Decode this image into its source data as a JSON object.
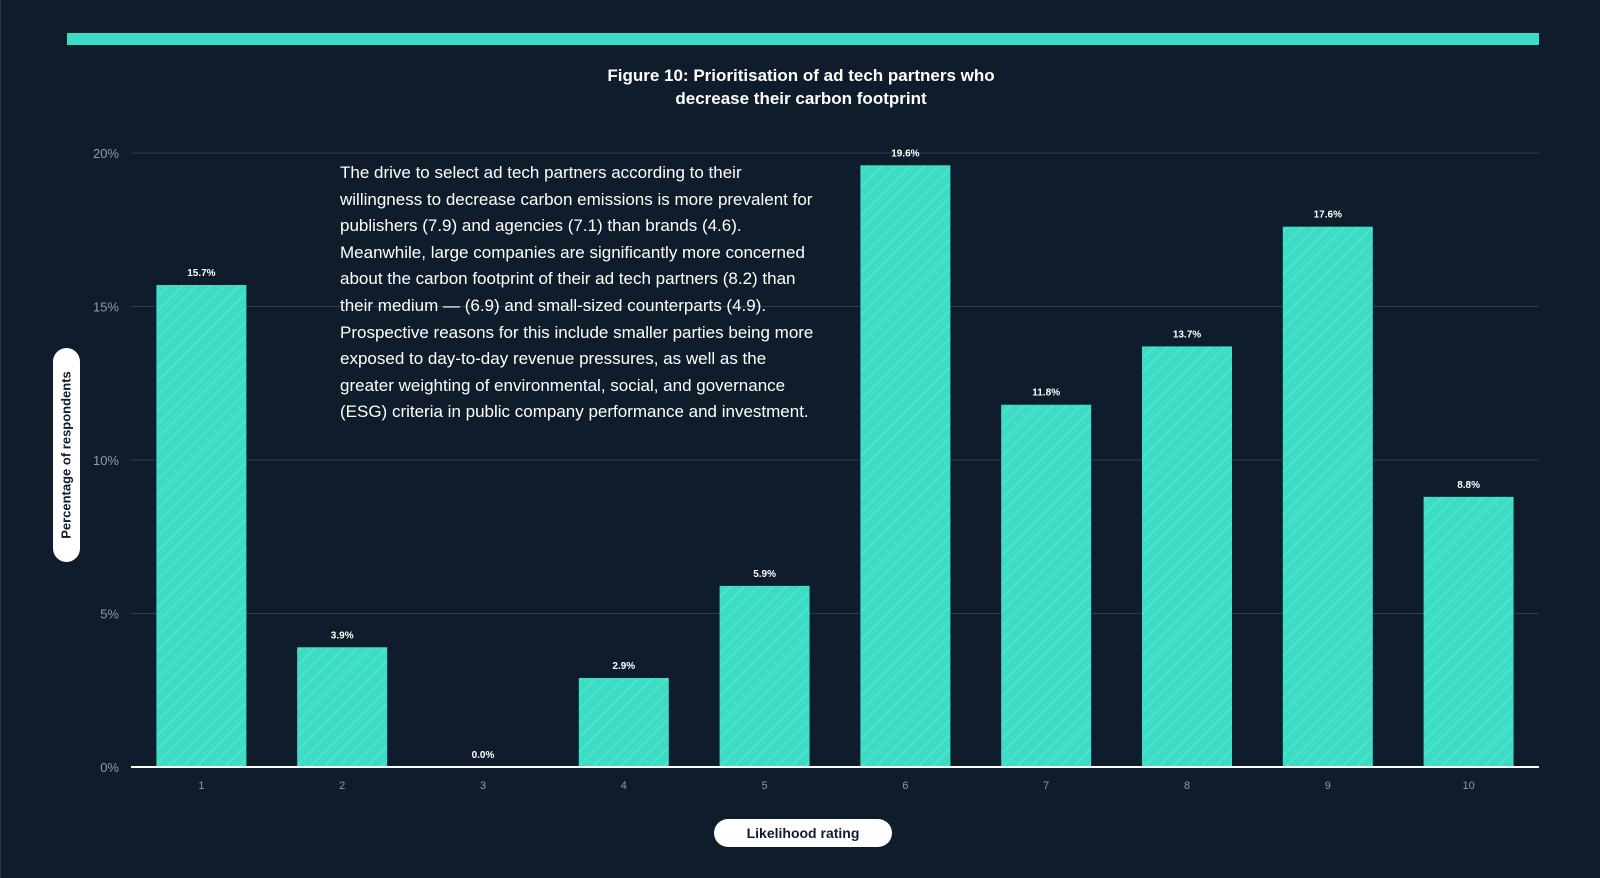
{
  "colors": {
    "background": "#0e1c2b",
    "accent": "#3ddcc4",
    "text": "#ffffff",
    "grid": "#2f3d4c",
    "tick_label": "#8f9aa6"
  },
  "chart_data": {
    "type": "bar",
    "title_prefix": "Figure 10:",
    "title_line1": "Prioritisation of ad tech partners who",
    "title_line2": "decrease their carbon footprint",
    "xlabel": "Likelihood rating",
    "ylabel": "Percentage of respondents",
    "categories": [
      "1",
      "2",
      "3",
      "4",
      "5",
      "6",
      "7",
      "8",
      "9",
      "10"
    ],
    "values": [
      15.7,
      3.9,
      0.0,
      2.9,
      5.9,
      19.6,
      11.8,
      13.7,
      17.6,
      8.8
    ],
    "value_labels": [
      "15.7%",
      "3.9%",
      "0.0%",
      "2.9%",
      "5.9%",
      "19.6%",
      "11.8%",
      "13.7%",
      "17.6%",
      "8.8%"
    ],
    "ylim": [
      0,
      20
    ],
    "yticks": [
      0,
      5,
      10,
      15,
      20
    ],
    "ytick_labels": [
      "0%",
      "5%",
      "10%",
      "15%",
      "20%"
    ],
    "grid": true,
    "annotation": "The drive to select ad tech partners according to their willingness to decrease carbon emissions is more prevalent for publishers (7.9) and agencies (7.1) than brands (4.6). Meanwhile, large companies are significantly more concerned about the carbon footprint of their ad tech partners (8.2) than their medium — (6.9) and small-sized counterparts (4.9). Prospective reasons for this include smaller parties being more exposed to day-to-day revenue pressures, as well as the greater weighting of environmental, social, and governance (ESG) criteria in public company performance and investment."
  }
}
